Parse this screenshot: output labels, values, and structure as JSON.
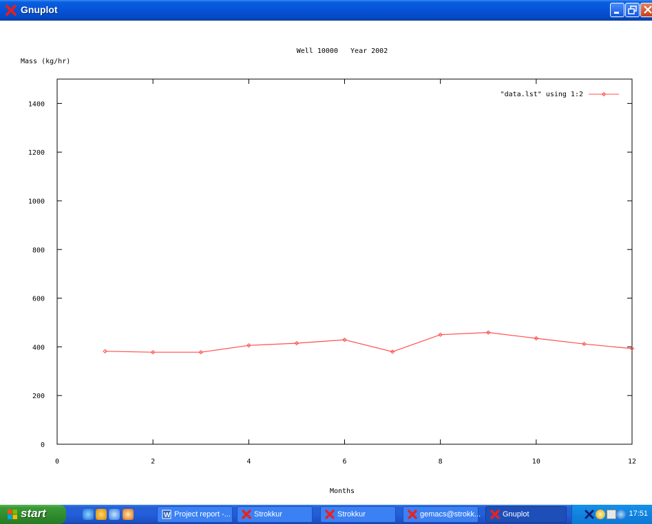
{
  "window": {
    "title": "Gnuplot"
  },
  "chart_data": {
    "type": "line",
    "title": "Well 10000   Year 2002",
    "xlabel": "Months",
    "ylabel": "Mass (kg/hr)",
    "xlim": [
      0,
      12
    ],
    "ylim": [
      0,
      1500
    ],
    "xticks": [
      0,
      2,
      4,
      6,
      8,
      10,
      12
    ],
    "yticks": [
      0,
      200,
      400,
      600,
      800,
      1000,
      1200,
      1400
    ],
    "grid": false,
    "legend_position": "top-right",
    "series": [
      {
        "name": "\"data.lst\" using 1:2",
        "color": "#ff4c4c",
        "x": [
          1,
          2,
          3,
          4,
          5,
          6,
          7,
          8,
          9,
          10,
          11,
          12
        ],
        "values": [
          382,
          378,
          378,
          406,
          415,
          429,
          380,
          450,
          459,
          435,
          412,
          393
        ]
      }
    ]
  },
  "taskbar": {
    "start_label": "start",
    "quick_launch": [
      "ie-icon",
      "media-icon",
      "browser-icon",
      "player-icon"
    ],
    "tasks": [
      {
        "label": "Project report -...",
        "icon": "word-icon",
        "active": false
      },
      {
        "label": "Strokkur",
        "icon": "x-icon",
        "active": false
      },
      {
        "label": "Strokkur",
        "icon": "x-icon",
        "active": false
      },
      {
        "label": "gemacs@strokk...",
        "icon": "x-icon",
        "active": false
      },
      {
        "label": "Gnuplot",
        "icon": "x-icon",
        "active": true
      }
    ],
    "clock": "17:51"
  }
}
